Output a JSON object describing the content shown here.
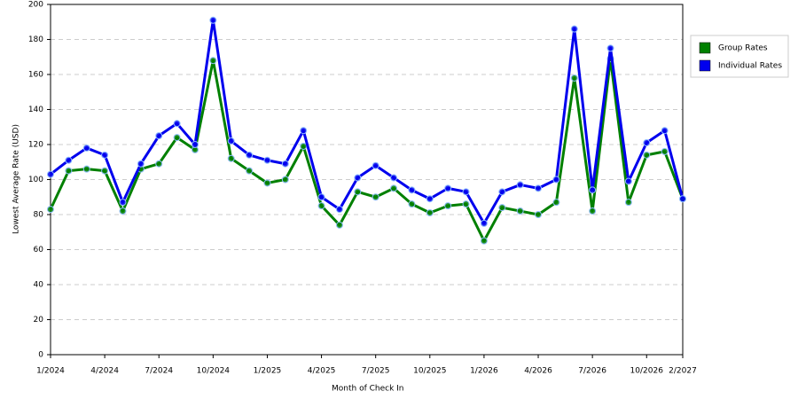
{
  "chart_data": {
    "type": "line",
    "x_label": "Month of Check In",
    "y_label": "Lowest Average Rate (USD)",
    "categories": [
      "1/2024",
      null,
      null,
      "4/2024",
      null,
      null,
      "7/2024",
      null,
      null,
      "10/2024",
      null,
      null,
      "1/2025",
      null,
      null,
      "4/2025",
      null,
      null,
      "7/2025",
      null,
      null,
      "10/2025",
      null,
      null,
      "1/2026",
      null,
      null,
      "4/2026",
      null,
      null,
      "7/2026",
      null,
      null,
      "10/2026",
      null,
      "2/2027"
    ],
    "series": [
      {
        "name": "Group Rates",
        "color": "#008000",
        "values": [
          83,
          105,
          106,
          105,
          82,
          106,
          109,
          124,
          117,
          168,
          112,
          105,
          98,
          100,
          119,
          85,
          74,
          93,
          90,
          95,
          86,
          81,
          85,
          86,
          65,
          84,
          82,
          80,
          87,
          158,
          82,
          169,
          87,
          114,
          116,
          89
        ]
      },
      {
        "name": "Individual Rates",
        "color": "#0000ee",
        "values": [
          103,
          111,
          118,
          114,
          87,
          109,
          125,
          132,
          120,
          191,
          122,
          114,
          111,
          109,
          128,
          90,
          83,
          101,
          108,
          101,
          94,
          89,
          95,
          93,
          75,
          93,
          97,
          95,
          100,
          186,
          94,
          175,
          99,
          121,
          128,
          89
        ]
      }
    ],
    "ylim": [
      0,
      200
    ],
    "yticks": [
      0,
      20,
      40,
      60,
      80,
      100,
      120,
      140,
      160,
      180,
      200
    ],
    "grid": true,
    "legend": "right"
  }
}
